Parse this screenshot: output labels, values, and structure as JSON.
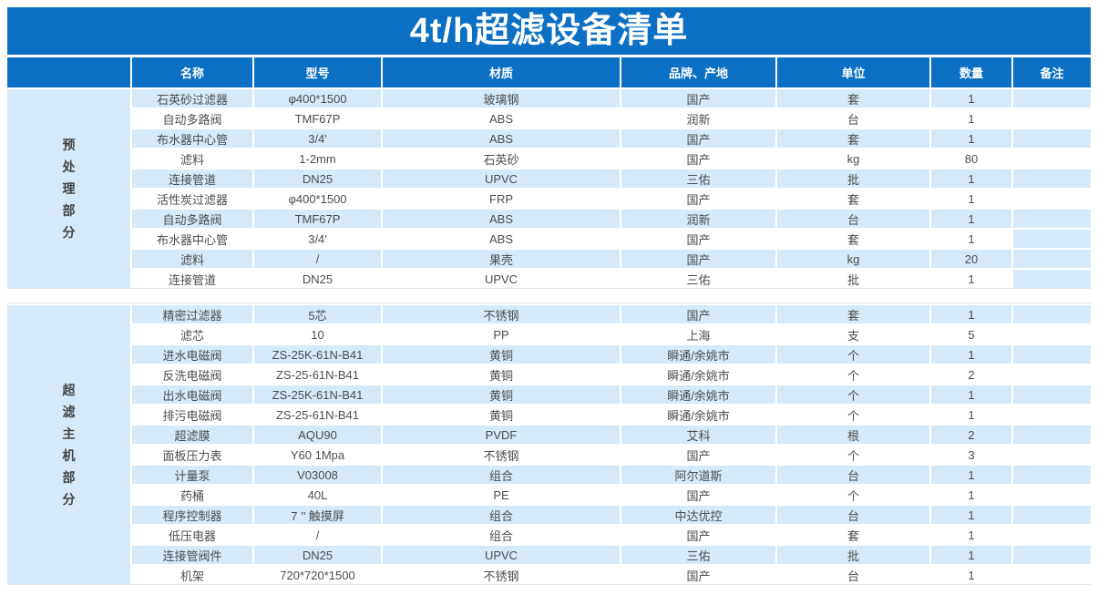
{
  "title": "4t/h超滤设备清单",
  "colors": {
    "accent_blue": "#0B6FC3",
    "stripe_blue": "#D5E9F8",
    "cell_text": "#4D4D4D",
    "separator_line": "#DBE5EF",
    "header_text": "#FFFFFF"
  },
  "table": {
    "headers": [
      "名称",
      "型号",
      "材质",
      "品牌、产地",
      "单位",
      "数量",
      "备注"
    ],
    "sections": [
      {
        "label": "预处理部分",
        "remark_tinted_rows": [
          7,
          8,
          9
        ],
        "rows": [
          [
            "石英砂过滤器",
            "φ400*1500",
            "玻璃钢",
            "国产",
            "套",
            "1",
            ""
          ],
          [
            "自动多路阀",
            "TMF67P",
            "ABS",
            "润新",
            "台",
            "1",
            ""
          ],
          [
            "布水器中心管",
            "3/4'",
            "ABS",
            "国产",
            "套",
            "1",
            ""
          ],
          [
            "滤料",
            "1-2mm",
            "石英砂",
            "国产",
            "kg",
            "80",
            ""
          ],
          [
            "连接管道",
            "DN25",
            "UPVC",
            "三佑",
            "批",
            "1",
            ""
          ],
          [
            "活性炭过滤器",
            "φ400*1500",
            "FRP",
            "国产",
            "套",
            "1",
            ""
          ],
          [
            "自动多路阀",
            "TMF67P",
            "ABS",
            "润新",
            "台",
            "1",
            ""
          ],
          [
            "布水器中心管",
            "3/4'",
            "ABS",
            "国产",
            "套",
            "1",
            ""
          ],
          [
            "滤料",
            "/",
            "果壳",
            "国产",
            "kg",
            "20",
            ""
          ],
          [
            "连接管道",
            "DN25",
            "UPVC",
            "三佑",
            "批",
            "1",
            ""
          ]
        ]
      },
      {
        "label": "超滤主机部分",
        "remark_tinted_rows": [],
        "rows": [
          [
            "精密过滤器",
            "5芯",
            "不锈钢",
            "国产",
            "套",
            "1",
            ""
          ],
          [
            "滤芯",
            "10",
            "PP",
            "上海",
            "支",
            "5",
            ""
          ],
          [
            "进水电磁阀",
            "ZS-25K-61N-B41",
            "黄铜",
            "瞬通/余姚市",
            "个",
            "1",
            ""
          ],
          [
            "反洗电磁阀",
            "ZS-25-61N-B41",
            "黄铜",
            "瞬通/余姚市",
            "个",
            "2",
            ""
          ],
          [
            "出水电磁阀",
            "ZS-25K-61N-B41",
            "黄铜",
            "瞬通/余姚市",
            "个",
            "1",
            ""
          ],
          [
            "排污电磁阀",
            "ZS-25-61N-B41",
            "黄铜",
            "瞬通/余姚市",
            "个",
            "1",
            ""
          ],
          [
            "超滤膜",
            "AQU90",
            "PVDF",
            "艾科",
            "根",
            "2",
            ""
          ],
          [
            "面板压力表",
            "Y60 1Mpa",
            "不锈钢",
            "国产",
            "个",
            "3",
            ""
          ],
          [
            "计量泵",
            "V03008",
            "组合",
            "阿尔道斯",
            "台",
            "1",
            ""
          ],
          [
            "药桶",
            "40L",
            "PE",
            "国产",
            "个",
            "1",
            ""
          ],
          [
            "程序控制器",
            "7 ’’ 触摸屏",
            "组合",
            "中达优控",
            "台",
            "1",
            ""
          ],
          [
            "低压电器",
            "/",
            "组合",
            "国产",
            "套",
            "1",
            ""
          ],
          [
            "连接管阀件",
            "DN25",
            "UPVC",
            "三佑",
            "批",
            "1",
            ""
          ],
          [
            "机架",
            "720*720*1500",
            "不锈钢",
            "国产",
            "台",
            "1",
            ""
          ]
        ]
      }
    ]
  }
}
